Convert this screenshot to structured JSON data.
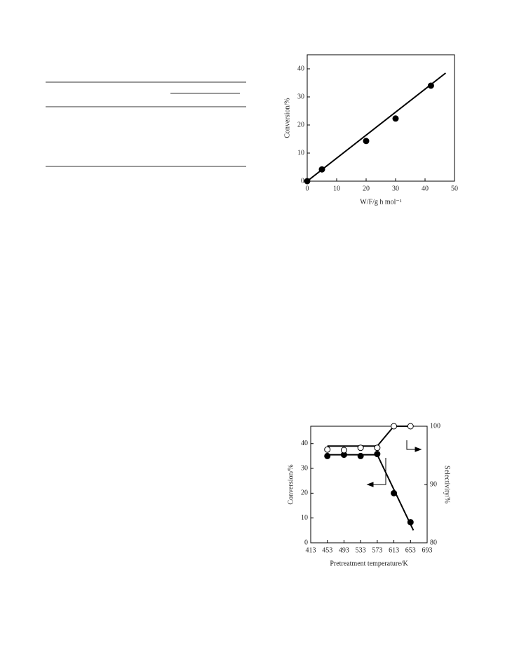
{
  "chart_data": [
    {
      "type": "scatter",
      "ylabel": "Conversion/%",
      "xlabel": "W/F/g h mol⁻¹",
      "x": [
        0,
        5,
        20,
        30,
        42
      ],
      "series": [
        {
          "color": "#000",
          "fill": "#000",
          "values": [
            0,
            4.2,
            14.3,
            22.3,
            34
          ],
          "trend": {
            "x": [
              0,
              47
            ],
            "values": [
              0,
              38.5
            ]
          }
        }
      ],
      "xlim": [
        0,
        50
      ],
      "xticks": [
        0,
        10,
        20,
        30,
        40,
        50
      ],
      "ylim": [
        0,
        45
      ],
      "yticks": [
        0,
        10,
        20,
        30,
        40
      ]
    },
    {
      "type": "scatter",
      "ylabel": "Conversion/%",
      "y2label": "Selectivity/%",
      "xlabel": "Pretreatment  temperature/K",
      "x": [
        453,
        493,
        533,
        573,
        613,
        653
      ],
      "series": [
        {
          "color": "#000",
          "fill": "#000",
          "values": [
            35,
            35.5,
            35,
            35.8,
            20,
            8.3
          ],
          "trend": {
            "x": [
              453,
              573,
              660
            ],
            "values": [
              35.5,
              35.5,
              5
            ]
          }
        },
        {
          "color": "#000",
          "fill": "#fff",
          "axis": "y2",
          "values": [
            96,
            95.9,
            96.3,
            96.3,
            100,
            100
          ],
          "trend": {
            "x": [
              453,
              573,
              613,
              653
            ],
            "values": [
              96.6,
              96.6,
              100,
              100
            ]
          }
        }
      ],
      "xlim": [
        413,
        693
      ],
      "xticks": [
        413,
        453,
        493,
        533,
        573,
        613,
        653,
        693
      ],
      "ylim": [
        0,
        47
      ],
      "yticks": [
        0,
        10,
        20,
        30,
        40
      ],
      "y2lim": [
        80,
        100
      ],
      "y2ticks": [
        80,
        90,
        100
      ]
    }
  ]
}
